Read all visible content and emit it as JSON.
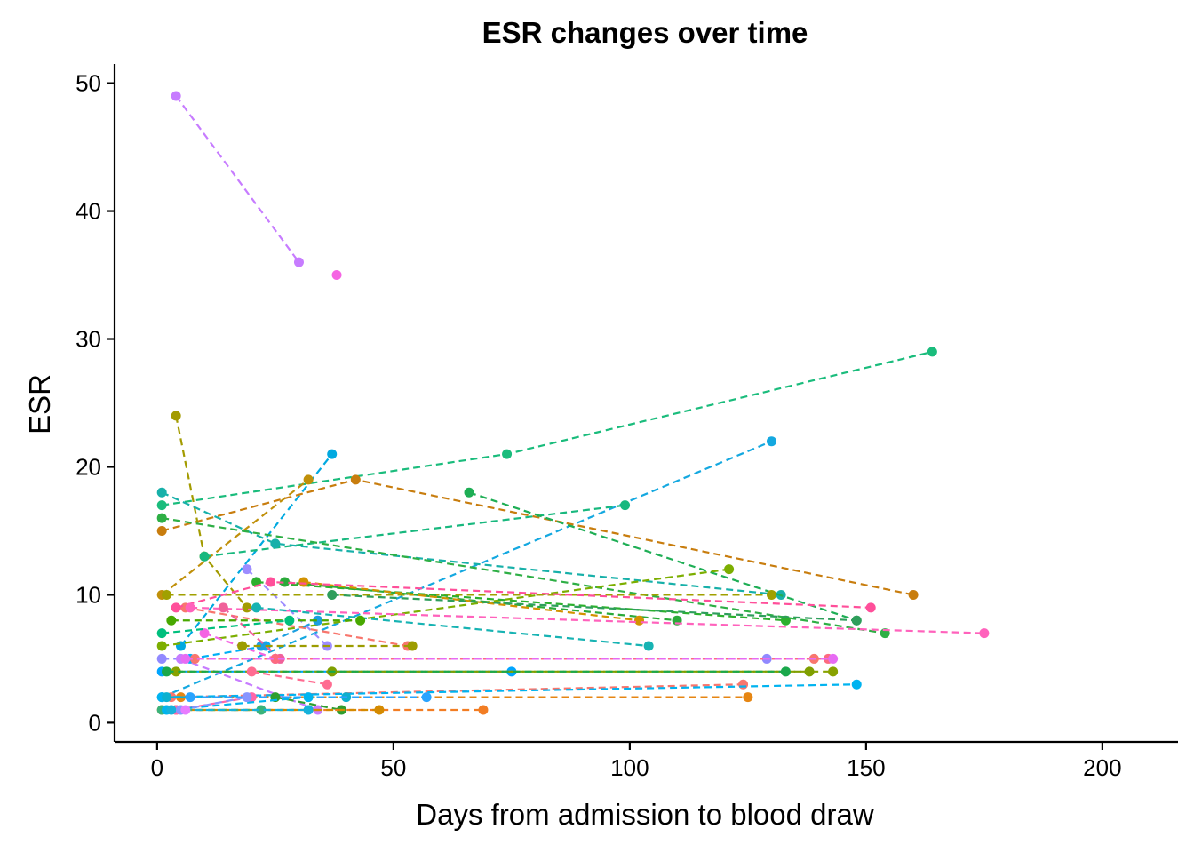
{
  "chart_data": {
    "type": "line",
    "title": "ESR changes over time",
    "xlabel": "Days from admission to blood draw",
    "ylabel": "ESR",
    "xlim": [
      -9,
      216
    ],
    "ylim": [
      -1.5,
      51.5
    ],
    "xticks": [
      0,
      50,
      100,
      150,
      200
    ],
    "yticks": [
      0,
      10,
      20,
      30,
      40,
      50
    ],
    "grid": false,
    "legend": "none",
    "series": [
      {
        "color": "#C77CFF",
        "x": [
          4,
          30
        ],
        "y": [
          49,
          36
        ]
      },
      {
        "color": "#F564E3",
        "x": [
          38
        ],
        "y": [
          35
        ]
      },
      {
        "color": "#1ABC7C",
        "x": [
          1,
          74,
          164
        ],
        "y": [
          17,
          21,
          29
        ]
      },
      {
        "color": "#00A9E0",
        "x": [
          5,
          37
        ],
        "y": [
          6,
          21
        ]
      },
      {
        "color": "#14A8E0",
        "x": [
          1,
          130
        ],
        "y": [
          2,
          22
        ]
      },
      {
        "color": "#C0900A",
        "x": [
          1,
          32
        ],
        "y": [
          10,
          19
        ]
      },
      {
        "color": "#C87D0E",
        "x": [
          1,
          42,
          160
        ],
        "y": [
          15,
          19,
          10
        ]
      },
      {
        "color": "#A39B00",
        "x": [
          4,
          10,
          19
        ],
        "y": [
          24,
          13,
          9
        ]
      },
      {
        "color": "#18B87E",
        "x": [
          10,
          99
        ],
        "y": [
          13,
          17
        ]
      },
      {
        "color": "#17B0A9",
        "x": [
          1,
          25,
          132
        ],
        "y": [
          18,
          14,
          10
        ]
      },
      {
        "color": "#1EAE55",
        "x": [
          66,
          148
        ],
        "y": [
          18,
          8
        ]
      },
      {
        "color": "#2EAF45",
        "x": [
          1,
          154
        ],
        "y": [
          16,
          7
        ]
      },
      {
        "color": "#7CAE00",
        "x": [
          1,
          121
        ],
        "y": [
          6,
          12
        ]
      },
      {
        "color": "#9D8CFF",
        "x": [
          19,
          36
        ],
        "y": [
          12,
          6
        ]
      },
      {
        "color": "#A0A000",
        "x": [
          2,
          130
        ],
        "y": [
          10,
          10
        ]
      },
      {
        "color": "#2CB02E",
        "x": [
          21,
          133
        ],
        "y": [
          11,
          8
        ]
      },
      {
        "color": "#2BAA3A",
        "x": [
          27,
          110
        ],
        "y": [
          11,
          8
        ]
      },
      {
        "color": "#D39200",
        "x": [
          31,
          102
        ],
        "y": [
          11,
          8
        ]
      },
      {
        "color": "#2E9E5B",
        "x": [
          37,
          148
        ],
        "y": [
          10,
          8
        ]
      },
      {
        "color": "#F8766D",
        "x": [
          6,
          53
        ],
        "y": [
          9,
          6
        ]
      },
      {
        "color": "#FF4F9A",
        "x": [
          4,
          24,
          151
        ],
        "y": [
          9,
          11,
          9
        ]
      },
      {
        "color": "#FF62BC",
        "x": [
          7,
          175
        ],
        "y": [
          9,
          7
        ]
      },
      {
        "color": "#17B3B3",
        "x": [
          21,
          104
        ],
        "y": [
          9,
          6
        ]
      },
      {
        "color": "#00B0F6",
        "x": [
          7,
          23
        ],
        "y": [
          5,
          6
        ]
      },
      {
        "color": "#1C9FE0",
        "x": [
          22,
          34
        ],
        "y": [
          6,
          8
        ]
      },
      {
        "color": "#F564E3",
        "x": [
          10,
          25
        ],
        "y": [
          7,
          5
        ]
      },
      {
        "color": "#F0619A",
        "x": [
          14,
          26
        ],
        "y": [
          9,
          5
        ]
      },
      {
        "color": "#9C9C00",
        "x": [
          18,
          54
        ],
        "y": [
          6,
          6
        ]
      },
      {
        "color": "#48A800",
        "x": [
          3,
          43
        ],
        "y": [
          8,
          8
        ]
      },
      {
        "color": "#00BF7D",
        "x": [
          1,
          28
        ],
        "y": [
          7,
          8
        ]
      },
      {
        "color": "#9189FF",
        "x": [
          1,
          129
        ],
        "y": [
          5,
          5
        ]
      },
      {
        "color": "#C77CFF",
        "x": [
          5,
          34
        ],
        "y": [
          5,
          1
        ]
      },
      {
        "color": "#F8766D",
        "x": [
          8,
          139
        ],
        "y": [
          5,
          5
        ]
      },
      {
        "color": "#FC6B7F",
        "x": [
          25,
          142
        ],
        "y": [
          5,
          5
        ]
      },
      {
        "color": "#E76BF3",
        "x": [
          6,
          143
        ],
        "y": [
          5,
          5
        ]
      },
      {
        "color": "#00A5FF",
        "x": [
          1,
          75
        ],
        "y": [
          4,
          4
        ]
      },
      {
        "color": "#88A200",
        "x": [
          4,
          143
        ],
        "y": [
          4,
          4
        ]
      },
      {
        "color": "#7F9F00",
        "x": [
          37,
          138
        ],
        "y": [
          4,
          4
        ]
      },
      {
        "color": "#1AA84B",
        "x": [
          2,
          133
        ],
        "y": [
          4,
          4
        ]
      },
      {
        "color": "#FF6C91",
        "x": [
          20,
          36
        ],
        "y": [
          4,
          3
        ]
      },
      {
        "color": "#E68613",
        "x": [
          5,
          125
        ],
        "y": [
          2,
          2
        ]
      },
      {
        "color": "#F8766D",
        "x": [
          3,
          124
        ],
        "y": [
          2,
          3
        ]
      },
      {
        "color": "#00B3F0",
        "x": [
          1,
          148
        ],
        "y": [
          2,
          3
        ]
      },
      {
        "color": "#0CB0CF",
        "x": [
          2,
          40
        ],
        "y": [
          2,
          2
        ]
      },
      {
        "color": "#29A3FF",
        "x": [
          7,
          57
        ],
        "y": [
          2,
          2
        ]
      },
      {
        "color": "#2E9E2E",
        "x": [
          25,
          39
        ],
        "y": [
          2,
          1
        ]
      },
      {
        "color": "#F27D23",
        "x": [
          1,
          69
        ],
        "y": [
          1,
          1
        ]
      },
      {
        "color": "#D48A00",
        "x": [
          4,
          47
        ],
        "y": [
          1,
          1
        ]
      },
      {
        "color": "#3AB37A",
        "x": [
          1,
          22
        ],
        "y": [
          1,
          1
        ]
      },
      {
        "color": "#FF66A8",
        "x": [
          4,
          20
        ],
        "y": [
          1,
          2
        ]
      },
      {
        "color": "#00B4EF",
        "x": [
          2,
          32
        ],
        "y": [
          1,
          2
        ]
      },
      {
        "color": "#16B1DA",
        "x": [
          3,
          32
        ],
        "y": [
          1,
          1
        ]
      },
      {
        "color": "#8795FF",
        "x": [
          5,
          19
        ],
        "y": [
          1,
          2
        ]
      },
      {
        "color": "#E87BFF",
        "x": [
          6
        ],
        "y": [
          1
        ]
      }
    ]
  }
}
